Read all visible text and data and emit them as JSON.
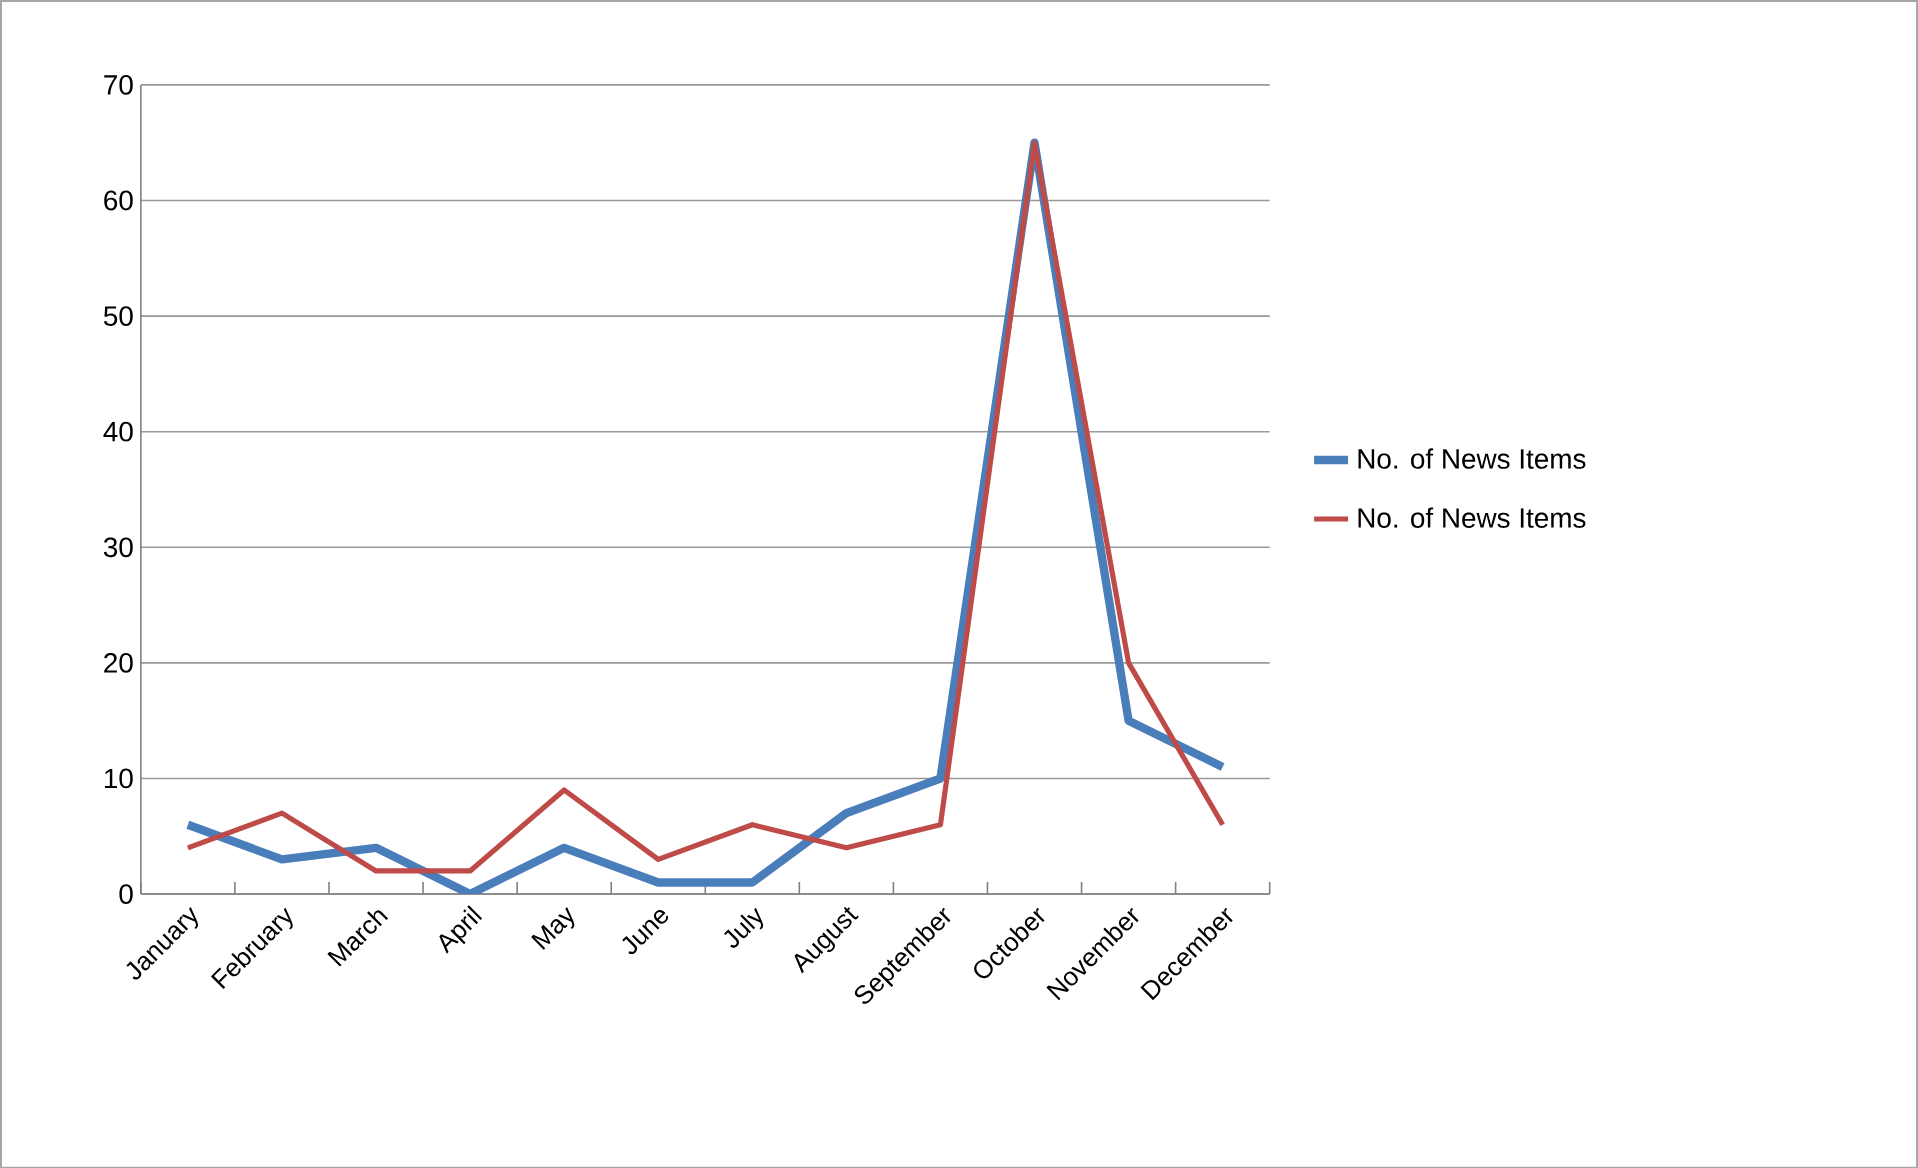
{
  "chart_data": {
    "type": "line",
    "categories": [
      "January",
      "February",
      "March",
      "April",
      "May",
      "June",
      "July",
      "August",
      "September",
      "October",
      "November",
      "December"
    ],
    "series": [
      {
        "name": "No. of News Items",
        "color": "#4a7ebb",
        "values": [
          6,
          3,
          4,
          0,
          4,
          1,
          1,
          7,
          10,
          65,
          15,
          11
        ]
      },
      {
        "name": "No. of News Items",
        "color": "#be4b48",
        "values": [
          4,
          7,
          2,
          2,
          9,
          3,
          6,
          4,
          6,
          65,
          20,
          6
        ]
      }
    ],
    "ylim": [
      0,
      70
    ],
    "yticks": [
      0,
      10,
      20,
      30,
      40,
      50,
      60,
      70
    ],
    "grid": "y",
    "legend": "right",
    "marker": "none",
    "line_style": "solid"
  }
}
